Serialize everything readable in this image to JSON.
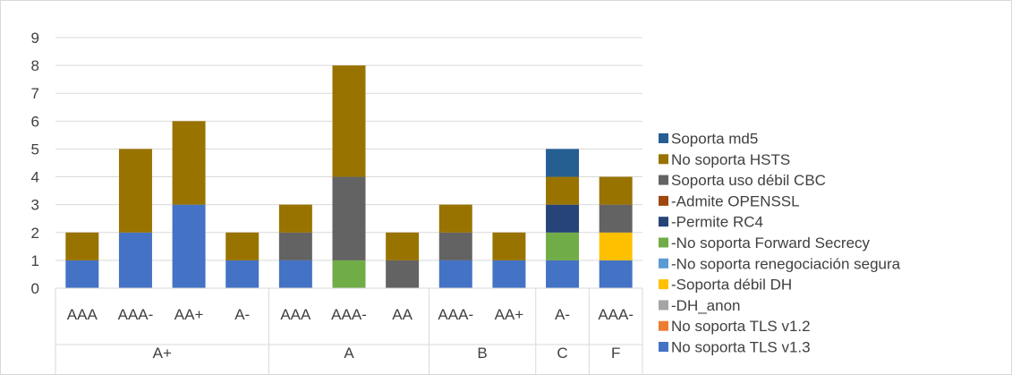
{
  "chart_data": {
    "type": "bar",
    "stacked": true,
    "title": "",
    "xlabel": "",
    "ylabel": "",
    "ylim": [
      0,
      9
    ],
    "yticks": [
      0,
      1,
      2,
      3,
      4,
      5,
      6,
      7,
      8,
      9
    ],
    "grid": true,
    "legend_position": "right",
    "groups": [
      {
        "label": "A+",
        "categories": [
          "AAA",
          "AAA-",
          "AA+",
          "A-"
        ]
      },
      {
        "label": "A",
        "categories": [
          "AAA",
          "AAA-",
          "AA"
        ]
      },
      {
        "label": "B",
        "categories": [
          "AAA-",
          "AA+"
        ]
      },
      {
        "label": "C",
        "categories": [
          "A-"
        ]
      },
      {
        "label": "F",
        "categories": [
          "AAA-"
        ]
      }
    ],
    "categories": [
      "AAA",
      "AAA-",
      "AA+",
      "A-",
      "AAA",
      "AAA-",
      "AA",
      "AAA-",
      "AA+",
      "A-",
      "AAA-"
    ],
    "series": [
      {
        "name": "No soporta TLS v1.3",
        "color": "#4472C4",
        "values": [
          1,
          2,
          3,
          1,
          1,
          0,
          0,
          1,
          1,
          1,
          1
        ]
      },
      {
        "name": "No soporta TLS v1.2",
        "color": "#ED7D31",
        "values": [
          0,
          0,
          0,
          0,
          0,
          0,
          0,
          0,
          0,
          0,
          0
        ]
      },
      {
        "name": "-DH_anon",
        "color": "#A5A5A5",
        "values": [
          0,
          0,
          0,
          0,
          0,
          0,
          0,
          0,
          0,
          0,
          0
        ]
      },
      {
        "name": "-Soporta débil DH",
        "color": "#FFC000",
        "values": [
          0,
          0,
          0,
          0,
          0,
          0,
          0,
          0,
          0,
          0,
          1
        ]
      },
      {
        "name": "-No soporta renegociación segura",
        "color": "#5B9BD5",
        "values": [
          0,
          0,
          0,
          0,
          0,
          0,
          0,
          0,
          0,
          0,
          0
        ]
      },
      {
        "name": "-No soporta Forward Secrecy",
        "color": "#70AD47",
        "values": [
          0,
          0,
          0,
          0,
          0,
          1,
          0,
          0,
          0,
          1,
          0
        ]
      },
      {
        "name": "-Permite RC4",
        "color": "#264478",
        "values": [
          0,
          0,
          0,
          0,
          0,
          0,
          0,
          0,
          0,
          1,
          0
        ]
      },
      {
        "name": "-Admite OPENSSL",
        "color": "#9E480E",
        "values": [
          0,
          0,
          0,
          0,
          0,
          0,
          0,
          0,
          0,
          0,
          0
        ]
      },
      {
        "name": "Soporta uso débil CBC",
        "color": "#636363",
        "values": [
          0,
          0,
          0,
          0,
          1,
          3,
          1,
          1,
          0,
          0,
          1
        ]
      },
      {
        "name": "No soporta HSTS",
        "color": "#997300",
        "values": [
          1,
          3,
          3,
          1,
          1,
          4,
          1,
          1,
          1,
          1,
          1
        ]
      },
      {
        "name": "Soporta md5",
        "color": "#255E91",
        "values": [
          0,
          0,
          0,
          0,
          0,
          0,
          0,
          0,
          0,
          1,
          0
        ]
      }
    ]
  }
}
